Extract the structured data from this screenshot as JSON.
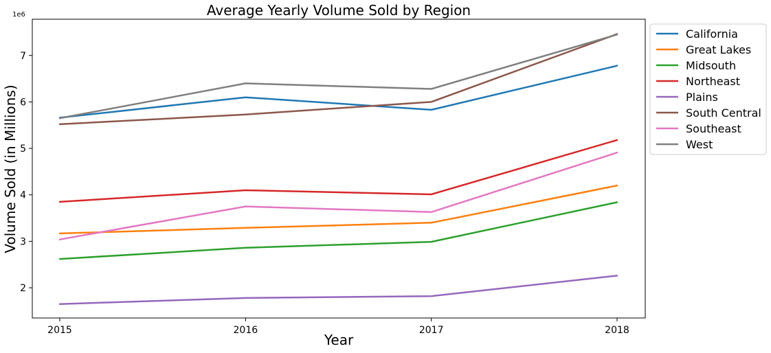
{
  "chart_data": {
    "type": "line",
    "title": "Average Yearly Volume Sold by Region",
    "xlabel": "Year",
    "ylabel": "Volume Sold (in Millions)",
    "y_scale_label": "1e6",
    "x": [
      "2015",
      "2016",
      "2017",
      "2018"
    ],
    "yticks": [
      2,
      3,
      4,
      5,
      6,
      7
    ],
    "yticks_labels": [
      "2",
      "3",
      "4",
      "5",
      "6",
      "7"
    ],
    "ylim": [
      1.35,
      7.78
    ],
    "legend_position": "outside-top-right",
    "grid": false,
    "series": [
      {
        "name": "California",
        "color": "#1f77b4",
        "values": [
          5.66,
          6.1,
          5.83,
          6.78
        ]
      },
      {
        "name": "Great Lakes",
        "color": "#ff7f0e",
        "values": [
          3.17,
          3.29,
          3.4,
          4.2
        ]
      },
      {
        "name": "Midsouth",
        "color": "#2ca02c",
        "values": [
          2.62,
          2.86,
          2.99,
          3.84
        ]
      },
      {
        "name": "Northeast",
        "color": "#d62728",
        "values": [
          3.85,
          4.1,
          4.01,
          5.18
        ]
      },
      {
        "name": "Plains",
        "color": "#9467bd",
        "values": [
          1.65,
          1.78,
          1.82,
          2.26
        ]
      },
      {
        "name": "South Central",
        "color": "#8c564b",
        "values": [
          5.52,
          5.73,
          6.0,
          7.46
        ]
      },
      {
        "name": "Southeast",
        "color": "#e377c2",
        "values": [
          3.04,
          3.75,
          3.63,
          4.91
        ]
      },
      {
        "name": "West",
        "color": "#7f7f7f",
        "values": [
          5.65,
          6.4,
          6.28,
          7.45
        ]
      }
    ]
  }
}
